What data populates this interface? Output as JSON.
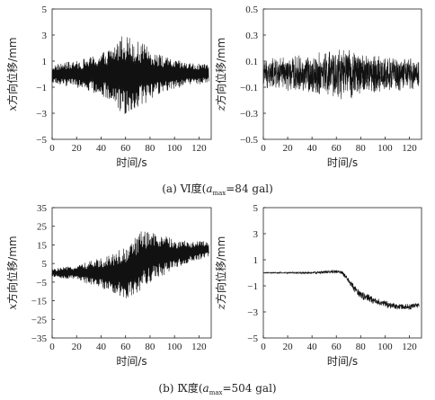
{
  "chart_data": [
    {
      "type": "line",
      "panel": "(a)",
      "xlabel": "时间/s",
      "ylabel": "x方向位移/mm",
      "xlim": [
        0,
        130
      ],
      "ylim": [
        -5,
        5
      ],
      "xticks": [
        "0",
        "20",
        "40",
        "60",
        "80",
        "100",
        "120"
      ],
      "yticks": [
        "-5",
        "-3",
        "-1",
        "1",
        "3",
        "5"
      ],
      "series": [
        {
          "x": [
            0,
            10,
            20,
            30,
            40,
            50,
            55,
            58,
            60,
            65,
            70,
            75,
            80,
            90,
            100,
            110,
            120,
            128
          ],
          "envelope_amplitude": [
            0.7,
            0.9,
            1.0,
            1.3,
            1.6,
            2.2,
            2.8,
            3.3,
            3.1,
            2.8,
            2.5,
            2.3,
            2.0,
            1.4,
            1.1,
            0.9,
            0.8,
            0.7
          ],
          "offset": [
            0,
            0,
            0,
            0,
            0,
            0,
            0,
            0,
            0,
            0,
            0,
            0,
            0,
            0,
            0,
            0,
            0,
            0
          ]
        }
      ]
    },
    {
      "type": "line",
      "panel": "(a)",
      "xlabel": "时间/s",
      "ylabel": "z方向位移/mm",
      "xlim": [
        0,
        130
      ],
      "ylim": [
        -0.5,
        0.5
      ],
      "xticks": [
        "0",
        "20",
        "40",
        "60",
        "80",
        "100",
        "120"
      ],
      "yticks": [
        "-0.5",
        "-0.3",
        "-0.1",
        "0.1",
        "0.3",
        "0.5"
      ],
      "series": [
        {
          "x": [
            0,
            20,
            40,
            55,
            60,
            70,
            90,
            110,
            128
          ],
          "envelope_amplitude": [
            0.12,
            0.14,
            0.16,
            0.2,
            0.22,
            0.2,
            0.16,
            0.14,
            0.12
          ],
          "offset": [
            0,
            0,
            0,
            0,
            0,
            0,
            0,
            0,
            0
          ]
        }
      ]
    },
    {
      "type": "line",
      "panel": "(b)",
      "xlabel": "时间/s",
      "ylabel": "x方向位移/mm",
      "xlim": [
        0,
        130
      ],
      "ylim": [
        -35,
        35
      ],
      "xticks": [
        "0",
        "20",
        "40",
        "60",
        "80",
        "100",
        "120"
      ],
      "yticks": [
        "35",
        "25",
        "15",
        "5",
        "-5",
        "-15",
        "-25",
        "-35"
      ],
      "series": [
        {
          "x": [
            0,
            10,
            20,
            30,
            40,
            50,
            60,
            65,
            70,
            75,
            80,
            85,
            90,
            100,
            110,
            120,
            128
          ],
          "envelope_amplitude": [
            2,
            3,
            4,
            6,
            8,
            11,
            14,
            16,
            17,
            16,
            14,
            12,
            11,
            8,
            6,
            5,
            4
          ],
          "offset": [
            0,
            0,
            0,
            0,
            0,
            0,
            0,
            1,
            4,
            7,
            8,
            9,
            9,
            10,
            11,
            12,
            13
          ]
        }
      ]
    },
    {
      "type": "line",
      "panel": "(b)",
      "xlabel": "时间/s",
      "ylabel": "z方向位移/mm",
      "xlim": [
        0,
        130
      ],
      "ylim": [
        -5,
        5
      ],
      "xticks": [
        "0",
        "20",
        "40",
        "60",
        "80",
        "100",
        "120"
      ],
      "yticks": [
        "5",
        "3",
        "1",
        "-1",
        "-3",
        "-5"
      ],
      "series": [
        {
          "x": [
            0,
            20,
            40,
            60,
            65,
            70,
            75,
            80,
            90,
            100,
            110,
            120,
            128
          ],
          "envelope_amplitude": [
            0.05,
            0.08,
            0.1,
            0.15,
            0.15,
            0.2,
            0.3,
            0.35,
            0.3,
            0.28,
            0.25,
            0.25,
            0.25
          ],
          "offset": [
            0,
            0,
            0,
            0.1,
            0,
            -0.6,
            -1.2,
            -1.7,
            -2.1,
            -2.4,
            -2.6,
            -2.6,
            -2.5
          ]
        }
      ]
    }
  ],
  "captions": {
    "a_prefix": "(a) Ⅵ度(",
    "a_var": "a",
    "a_sub": "max",
    "a_suffix": "=84 gal)",
    "b_prefix": "(b) Ⅸ度(",
    "b_var": "a",
    "b_sub": "max",
    "b_suffix": "=504 gal)"
  }
}
